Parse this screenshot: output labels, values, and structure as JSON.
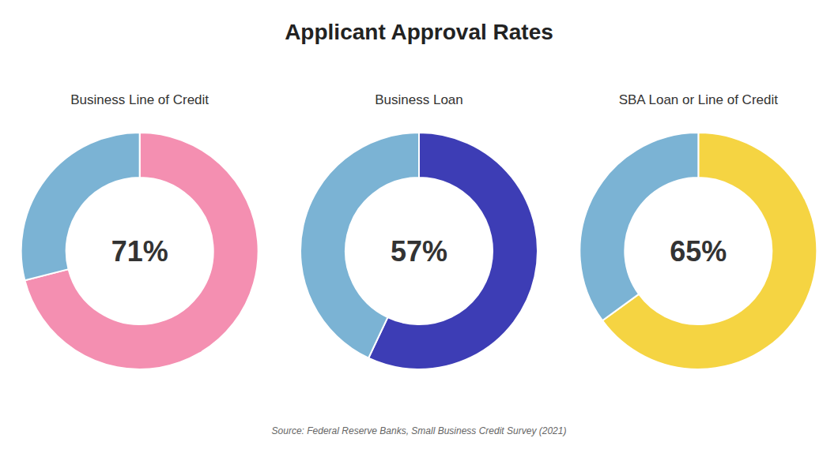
{
  "title": "Applicant Approval Rates",
  "source": "Source: Federal Reserve Banks, Small Business Credit Survey (2021)",
  "chart_data": [
    {
      "type": "pie",
      "title": "Business Line of Credit",
      "values": [
        71,
        29
      ],
      "value_labels": [
        "71%",
        null
      ],
      "colors": [
        "#f48fb1",
        "#7bb3d4"
      ]
    },
    {
      "type": "pie",
      "title": "Business Loan",
      "values": [
        57,
        43
      ],
      "value_labels": [
        "57%",
        null
      ],
      "colors": [
        "#3d3db5",
        "#7bb3d4"
      ]
    },
    {
      "type": "pie",
      "title": "SBA Loan or Line of Credit",
      "values": [
        65,
        35
      ],
      "value_labels": [
        "65%",
        null
      ],
      "colors": [
        "#f5d442",
        "#7bb3d4"
      ]
    }
  ]
}
